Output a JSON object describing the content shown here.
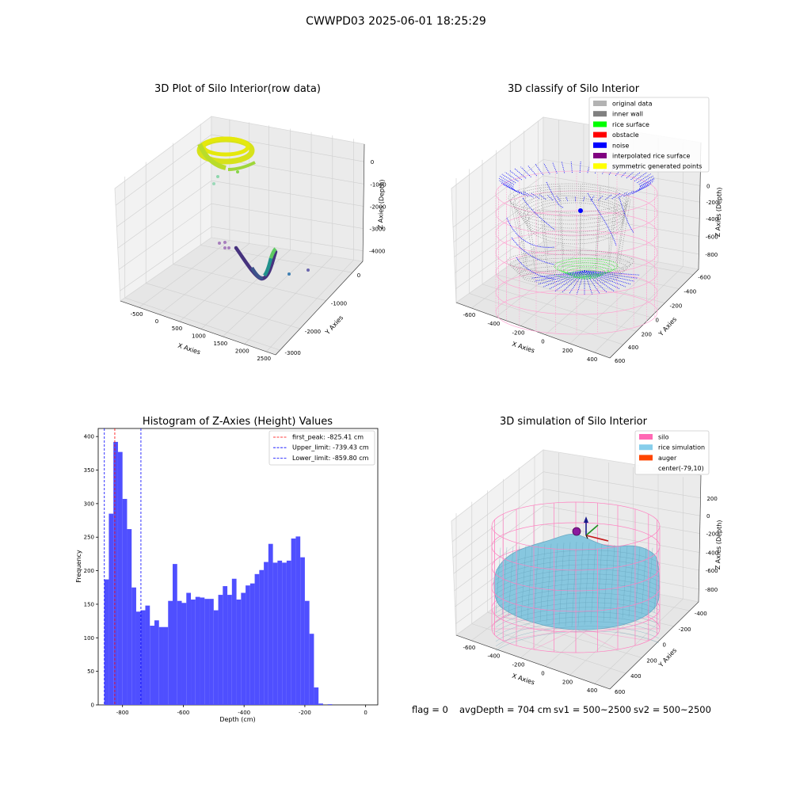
{
  "suptitle": "CWWPD03 2025-06-01 18:25:29",
  "panel_raw": {
    "title": "3D Plot of Silo Interior(row data)",
    "xlabel": "X Axies",
    "ylabel": "Y Axies",
    "zlabel": "Z Axies (Depth)",
    "x_ticks": [
      "-500",
      "0",
      "500",
      "1000",
      "1500",
      "2000",
      "2500"
    ],
    "y_ticks": [
      "0",
      "-1000",
      "-2000",
      "-3000"
    ],
    "z_ticks": [
      "0",
      "-1000",
      "-2000",
      "-3000",
      "-4000"
    ]
  },
  "panel_classify": {
    "title": "3D classify of Silo Interior",
    "xlabel": "X Axies",
    "ylabel": "Y Axies",
    "zlabel": "Z Axies (Depth)",
    "x_ticks": [
      "-600",
      "-400",
      "-200",
      "0",
      "200",
      "400"
    ],
    "y_ticks": [
      "600",
      "400",
      "200",
      "0",
      "-200",
      "-400",
      "-600"
    ],
    "z_ticks": [
      "0",
      "-200",
      "-400",
      "-600",
      "-800"
    ],
    "z_top_partial": "00",
    "legend": [
      {
        "label": "original data",
        "color": "#b3b3b3"
      },
      {
        "label": "inner wall",
        "color": "#808080"
      },
      {
        "label": "rice surface",
        "color": "#00ff00"
      },
      {
        "label": "obstacle",
        "color": "#ff0000"
      },
      {
        "label": "noise",
        "color": "#0000ff"
      },
      {
        "label": "interpolated rice surface",
        "color": "#800080"
      },
      {
        "label": "symmetric generated points",
        "color": "#ffff00"
      }
    ]
  },
  "panel_hist": {
    "title": "Histogram of Z-Axies (Height) Values",
    "xlabel": "Depth (cm)",
    "ylabel": "Frequency",
    "x_ticks": [
      "-800",
      "-600",
      "-400",
      "-200",
      "0"
    ],
    "y_ticks": [
      "0",
      "50",
      "100",
      "150",
      "200",
      "250",
      "300",
      "350",
      "400"
    ],
    "legend": [
      {
        "label": "first_peak: -825.41 cm",
        "color": "#ff0000"
      },
      {
        "label": "Upper_limit: -739.43 cm",
        "color": "#0000ff"
      },
      {
        "label": "Lower_limit: -859.80 cm",
        "color": "#0000ff"
      }
    ]
  },
  "panel_sim": {
    "title": "3D simulation of Silo Interior",
    "xlabel": "X Axies",
    "ylabel": "Y Axies",
    "zlabel": "Z Axies (Depth)",
    "x_ticks": [
      "-600",
      "-400",
      "-200",
      "0",
      "200",
      "400"
    ],
    "y_ticks": [
      "600",
      "400",
      "200",
      "0",
      "-200",
      "-400"
    ],
    "z_ticks": [
      "200",
      "0",
      "-200",
      "-400",
      "-600",
      "-800"
    ],
    "legend": [
      {
        "label": "silo",
        "color": "#ff69b4"
      },
      {
        "label": "rice simulation",
        "color": "#87ceeb"
      },
      {
        "label": "auger",
        "color": "#ff4500"
      },
      {
        "label": "center(-79,10)",
        "color": "#ffffff"
      }
    ]
  },
  "status": {
    "flag": "flag = 0",
    "avg_depth": "avgDepth = 704 cm",
    "sv1": "sv1 = 500~2500",
    "sv2": "sv2 = 500~2500"
  },
  "chart_data": [
    {
      "type": "scatter",
      "title": "3D Plot of Silo Interior(row data)",
      "xlabel": "X Axies",
      "ylabel": "Y Axies",
      "zlabel": "Z Axies (Depth)",
      "xlim": [
        -800,
        2700
      ],
      "ylim": [
        500,
        -3400
      ],
      "zlim": [
        -4800,
        200
      ],
      "grid": true
    },
    {
      "type": "scatter",
      "title": "3D classify of Silo Interior",
      "xlabel": "X Axies",
      "ylabel": "Y Axies",
      "zlabel": "Z Axies (Depth)",
      "xlim": [
        -700,
        500
      ],
      "ylim": [
        600,
        -600
      ],
      "zlim": [
        -900,
        100
      ],
      "legend_position": "upper right",
      "grid": true
    },
    {
      "type": "bar",
      "title": "Histogram of Z-Axies (Height) Values",
      "xlabel": "Depth (cm)",
      "ylabel": "Frequency",
      "xlim": [
        -880,
        40
      ],
      "ylim": [
        0,
        412
      ],
      "bin_start": -860,
      "bin_width": 15,
      "values": [
        187,
        285,
        392,
        377,
        307,
        262,
        175,
        139,
        141,
        148,
        118,
        126,
        116,
        116,
        155,
        210,
        155,
        152,
        167,
        157,
        161,
        160,
        158,
        158,
        141,
        164,
        177,
        164,
        188,
        157,
        167,
        178,
        181,
        195,
        201,
        213,
        240,
        212,
        215,
        212,
        215,
        248,
        251,
        220,
        155,
        106,
        26,
        2,
        0,
        1
      ],
      "vlines": [
        {
          "x": -825.41,
          "color": "#ff0000",
          "label": "first_peak: -825.41 cm"
        },
        {
          "x": -739.43,
          "color": "#0000ff",
          "label": "Upper_limit: -739.43 cm"
        },
        {
          "x": -859.8,
          "color": "#0000ff",
          "label": "Lower_limit: -859.80 cm"
        }
      ],
      "bar_color": "#4b4bff",
      "legend_position": "upper right",
      "grid": false
    },
    {
      "type": "area",
      "title": "3D simulation of Silo Interior",
      "xlabel": "X Axies",
      "ylabel": "Y Axies",
      "zlabel": "Z Axies (Depth)",
      "xlim": [
        -700,
        500
      ],
      "ylim": [
        600,
        -500
      ],
      "zlim": [
        -900,
        300
      ],
      "legend_position": "upper right",
      "grid": true
    }
  ]
}
